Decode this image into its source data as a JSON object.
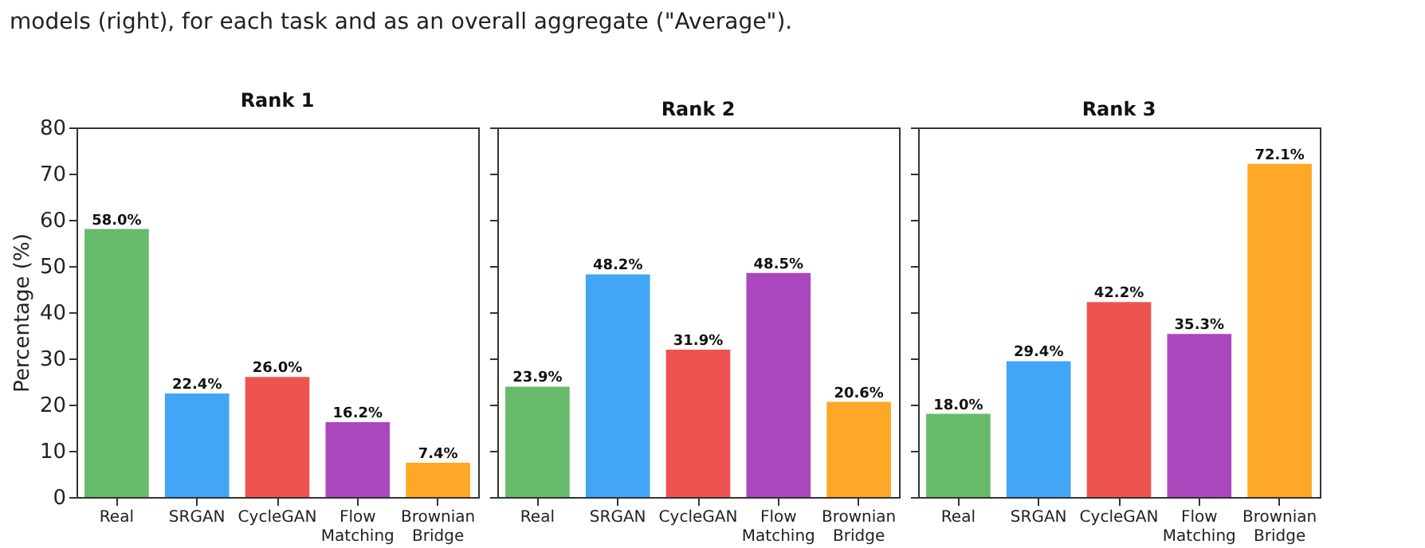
{
  "chart_data": [
    {
      "type": "bar",
      "title": "Rank 1",
      "ylabel": "Percentage (%)",
      "annotations": [
        "models (right), for each task and as an overall aggregate (\"Average\")."
      ],
      "categories": [
        "Real",
        "SRGAN",
        "CycleGAN",
        "Flow Matching",
        "Brownian Bridge"
      ],
      "values": [
        58.0,
        22.4,
        26.0,
        16.2,
        7.4
      ],
      "value_labels": [
        "58.0%",
        "22.4%",
        "26.0%",
        "16.2%",
        "7.4%"
      ],
      "colors": [
        "#66bb6a",
        "#42a5f5",
        "#ef5350",
        "#ab47bc",
        "#ffa726"
      ],
      "ylim": [
        0,
        80
      ],
      "yticks": [
        0,
        10,
        20,
        30,
        40,
        50,
        60,
        70,
        80
      ]
    },
    {
      "type": "bar",
      "title": "Rank 2",
      "categories": [
        "Real",
        "SRGAN",
        "CycleGAN",
        "Flow Matching",
        "Brownian Bridge"
      ],
      "values": [
        23.9,
        48.2,
        31.9,
        48.5,
        20.6
      ],
      "value_labels": [
        "23.9%",
        "48.2%",
        "31.9%",
        "48.5%",
        "20.6%"
      ],
      "colors": [
        "#66bb6a",
        "#42a5f5",
        "#ef5350",
        "#ab47bc",
        "#ffa726"
      ],
      "ylim": [
        0,
        80
      ],
      "yticks": [
        0,
        10,
        20,
        30,
        40,
        50,
        60,
        70,
        80
      ],
      "tick_labels": "x"
    },
    {
      "type": "bar",
      "title": "Rank 3",
      "categories": [
        "Real",
        "SRGAN",
        "CycleGAN",
        "Flow Matching",
        "Brownian Bridge"
      ],
      "values": [
        18.0,
        29.4,
        42.2,
        35.3,
        72.1
      ],
      "value_labels": [
        "18.0%",
        "29.4%",
        "42.2%",
        "35.3%",
        "72.1%"
      ],
      "colors": [
        "#66bb6a",
        "#42a5f5",
        "#ef5350",
        "#ab47bc",
        "#ffa726"
      ],
      "ylim": [
        0,
        80
      ],
      "yticks": [
        0,
        10,
        20,
        30,
        40,
        50,
        60,
        70,
        80
      ],
      "tick_labels": "x"
    }
  ]
}
